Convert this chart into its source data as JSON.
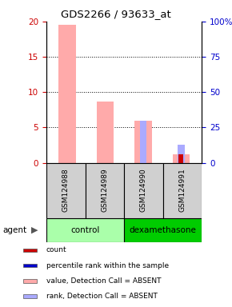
{
  "title": "GDS2266 / 93633_at",
  "samples": [
    "GSM124988",
    "GSM124989",
    "GSM124990",
    "GSM124991"
  ],
  "groups": [
    {
      "name": "control",
      "color": "#aaffaa",
      "n_samples": 2
    },
    {
      "name": "dexamethasone",
      "color": "#00cc00",
      "n_samples": 2
    }
  ],
  "absent_value_bars": [
    19.5,
    8.7,
    5.9,
    1.2
  ],
  "absent_rank_bars": [
    0.0,
    0.0,
    6.0,
    2.5
  ],
  "red_bars": [
    0.0,
    0.0,
    0.0,
    1.2
  ],
  "blue_bars": [
    0.0,
    0.0,
    0.0,
    0.0
  ],
  "ylim": [
    0,
    20
  ],
  "y2lim": [
    0,
    100
  ],
  "yticks": [
    0,
    5,
    10,
    15,
    20
  ],
  "y2ticks": [
    0,
    25,
    50,
    75,
    100
  ],
  "color_count": "#cc0000",
  "color_rank": "#0000cc",
  "color_absent_value": "#ffaaaa",
  "color_absent_rank": "#aaaaff",
  "legend_items": [
    {
      "color": "#cc0000",
      "label": "count"
    },
    {
      "color": "#0000cc",
      "label": "percentile rank within the sample"
    },
    {
      "color": "#ffaaaa",
      "label": "value, Detection Call = ABSENT"
    },
    {
      "color": "#aaaaff",
      "label": "rank, Detection Call = ABSENT"
    }
  ],
  "agent_label": "agent"
}
